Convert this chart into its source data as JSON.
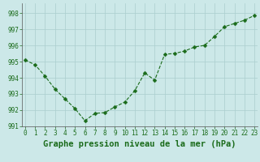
{
  "x": [
    0,
    1,
    2,
    3,
    4,
    5,
    6,
    7,
    8,
    9,
    10,
    11,
    12,
    13,
    14,
    15,
    16,
    17,
    18,
    19,
    20,
    21,
    22,
    23
  ],
  "y": [
    995.1,
    994.8,
    994.1,
    993.3,
    992.7,
    992.1,
    991.35,
    991.8,
    991.85,
    992.2,
    992.5,
    993.2,
    994.3,
    993.85,
    995.45,
    995.5,
    995.65,
    995.9,
    996.0,
    996.55,
    997.15,
    997.35,
    997.55,
    997.85
  ],
  "line_color": "#1a6b1a",
  "marker": "D",
  "marker_size": 2.5,
  "bg_color": "#cce8e8",
  "grid_color": "#aacece",
  "title": "Graphe pression niveau de la mer (hPa)",
  "title_fontsize": 7.5,
  "title_color": "#1a6b1a",
  "ylim": [
    991.0,
    998.6
  ],
  "yticks": [
    991,
    992,
    993,
    994,
    995,
    996,
    997,
    998
  ],
  "xticks": [
    0,
    1,
    2,
    3,
    4,
    5,
    6,
    7,
    8,
    9,
    10,
    11,
    12,
    13,
    14,
    15,
    16,
    17,
    18,
    19,
    20,
    21,
    22,
    23
  ],
  "tick_fontsize": 5.5,
  "tick_color": "#1a6b1a",
  "xlim": [
    -0.3,
    23.3
  ]
}
